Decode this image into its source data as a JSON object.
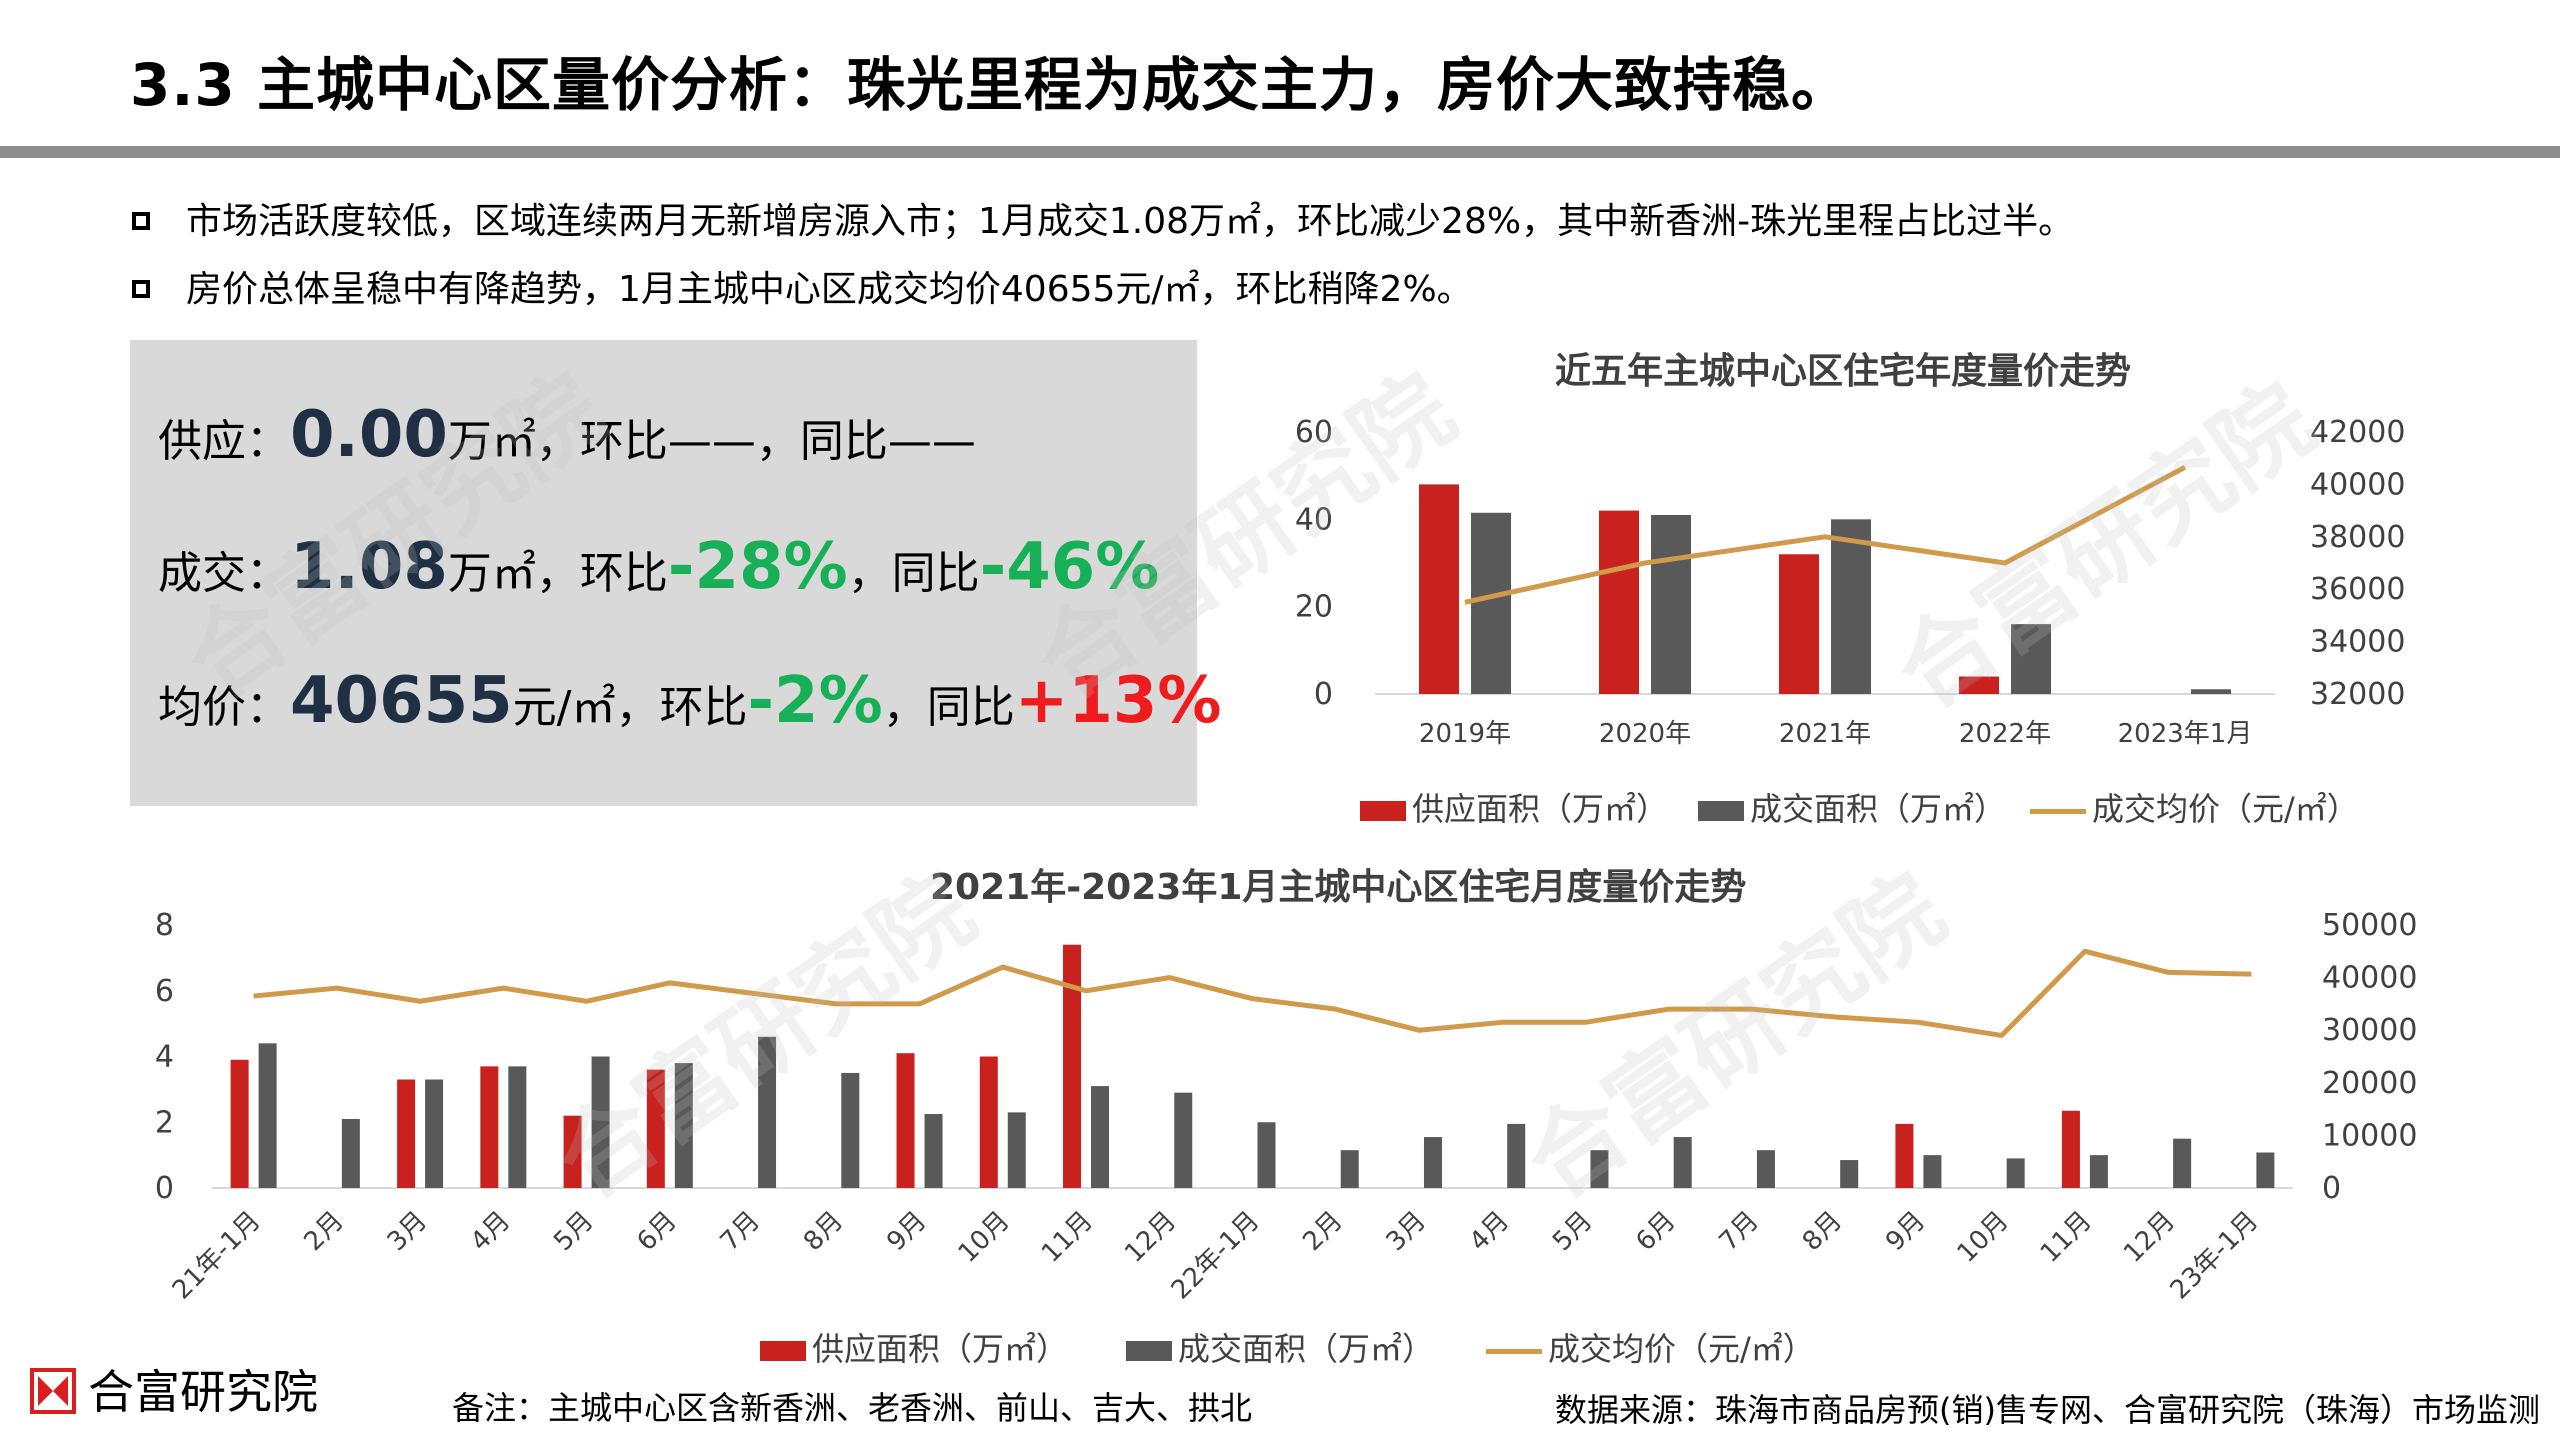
{
  "header": {
    "title": "3.3 主城中心区量价分析：珠光里程为成交主力，房价大致持稳。"
  },
  "bullets": [
    "市场活跃度较低，区域连续两月无新增房源入市；1月成交1.08万㎡，环比减少28%，其中新香洲-珠光里程占比过半。",
    "房价总体呈稳中有降趋势，1月主城中心区成交均价40655元/㎡，环比稍降2%。"
  ],
  "summary": {
    "supply": {
      "label": "供应：",
      "value": "0.00",
      "unit": "万㎡",
      "mom_label": "，环比",
      "mom": "——",
      "yoy_label": "，同比",
      "yoy": "——"
    },
    "deal": {
      "label": "成交：",
      "value": "1.08",
      "unit": "万㎡",
      "mom_label": "，环比",
      "mom": "-28%",
      "yoy_label": "，同比",
      "yoy": "-46%"
    },
    "price": {
      "label": "均价：",
      "value": "40655",
      "unit": "元/㎡",
      "mom_label": "，环比",
      "mom": "-2%",
      "yoy_label": "，同比",
      "yoy": "+13%"
    }
  },
  "colors": {
    "supply": "#c8211e",
    "deal": "#595959",
    "price": "#d09a4a",
    "negative": "#17b056",
    "positive": "#ee1c1c"
  },
  "chart_data": [
    {
      "type": "bar",
      "title": "近五年主城中心区住宅年度量价走势",
      "categories": [
        "2019年",
        "2020年",
        "2021年",
        "2022年",
        "2023年1月"
      ],
      "series": [
        {
          "name": "供应面积（万㎡）",
          "kind": "bar",
          "axis": "left",
          "values": [
            48,
            42,
            32,
            4,
            0
          ]
        },
        {
          "name": "成交面积（万㎡）",
          "kind": "bar",
          "axis": "left",
          "values": [
            41.5,
            41,
            40,
            16,
            1.08
          ]
        },
        {
          "name": "成交均价（元/㎡）",
          "kind": "line",
          "axis": "right",
          "values": [
            35500,
            37000,
            38000,
            37000,
            40655
          ]
        }
      ],
      "ylim": [
        0,
        60
      ],
      "yticks": [
        "60",
        "40",
        "20",
        "0"
      ],
      "y2lim": [
        32000,
        42000
      ],
      "y2ticks": [
        "42000",
        "40000",
        "38000",
        "36000",
        "34000",
        "32000"
      ],
      "legend": "bottom"
    },
    {
      "type": "bar",
      "title": "2021年-2023年1月主城中心区住宅月度量价走势",
      "categories": [
        "21年-1月",
        "2月",
        "3月",
        "4月",
        "5月",
        "6月",
        "7月",
        "8月",
        "9月",
        "10月",
        "11月",
        "12月",
        "22年-1月",
        "2月",
        "3月",
        "4月",
        "5月",
        "6月",
        "7月",
        "8月",
        "9月",
        "10月",
        "11月",
        "12月",
        "23年-1月"
      ],
      "series": [
        {
          "name": "供应面积（万㎡）",
          "kind": "bar",
          "axis": "left",
          "values": [
            3.9,
            0,
            3.3,
            3.7,
            2.2,
            3.6,
            0,
            0,
            4.1,
            4.0,
            7.4,
            0,
            0,
            0,
            0,
            0,
            0,
            0,
            0,
            0,
            1.95,
            0,
            2.35,
            0,
            0
          ]
        },
        {
          "name": "成交面积（万㎡）",
          "kind": "bar",
          "axis": "left",
          "values": [
            4.4,
            2.1,
            3.3,
            3.7,
            4.0,
            3.8,
            4.6,
            3.5,
            2.25,
            2.3,
            3.1,
            2.9,
            2.0,
            1.15,
            1.55,
            1.95,
            1.15,
            1.55,
            1.15,
            0.85,
            1.0,
            0.9,
            1.0,
            1.5,
            1.08
          ]
        },
        {
          "name": "成交均价（元/㎡）",
          "kind": "line",
          "axis": "right",
          "values": [
            36500,
            38000,
            35500,
            38000,
            35500,
            39000,
            37000,
            35000,
            35000,
            42000,
            37500,
            40000,
            36000,
            34000,
            30000,
            31500,
            31500,
            34000,
            34000,
            32500,
            31500,
            29000,
            45000,
            41000,
            40655
          ]
        }
      ],
      "ylim": [
        0,
        8
      ],
      "yticks": [
        "8",
        "6",
        "4",
        "2",
        "0"
      ],
      "y2lim": [
        0,
        50000
      ],
      "y2ticks": [
        "50000",
        "40000",
        "30000",
        "20000",
        "10000",
        "0"
      ],
      "legend": "bottom"
    }
  ],
  "watermark": "合富研究院",
  "footer": {
    "logo_text": "合富研究院",
    "note": "备注：主城中心区含新香洲、老香洲、前山、吉大、拱北",
    "source": "数据来源：珠海市商品房预(销)售专网、合富研究院（珠海）市场监测"
  }
}
